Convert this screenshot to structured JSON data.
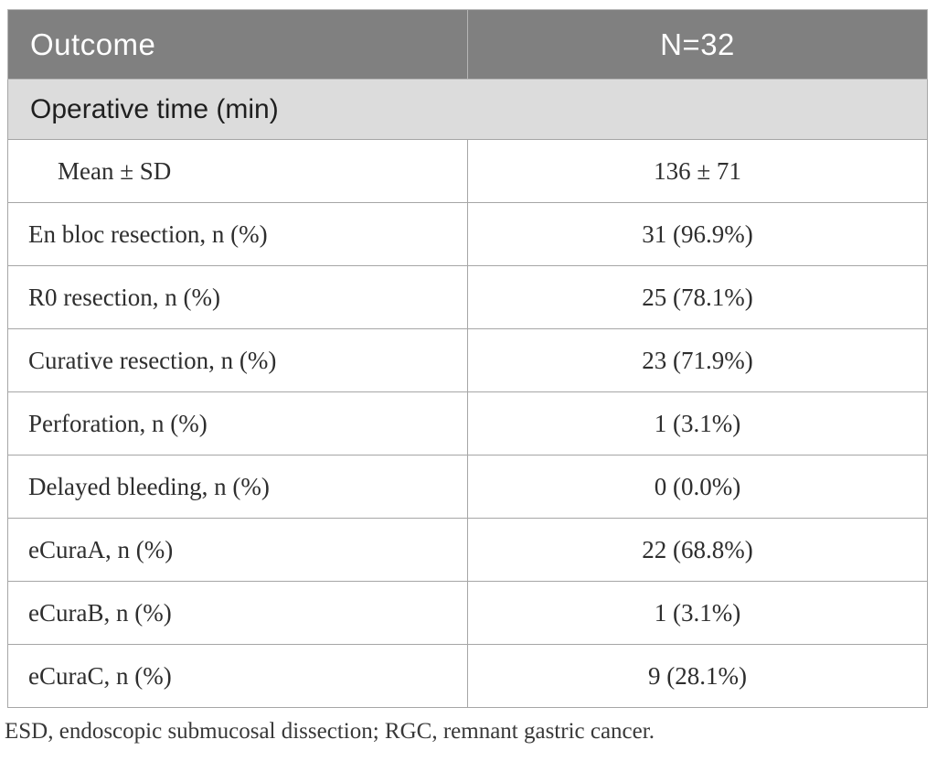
{
  "table": {
    "header": {
      "outcome_label": "Outcome",
      "n_label": "N=32"
    },
    "section": {
      "label": "Operative time (min)"
    },
    "rows": [
      {
        "label": "Mean ± SD",
        "value": "136 ± 71",
        "indent": true
      },
      {
        "label": "En bloc resection, n (%)",
        "value": "31 (96.9%)",
        "indent": false
      },
      {
        "label": "R0 resection, n (%)",
        "value": "25 (78.1%)",
        "indent": false
      },
      {
        "label": "Curative resection, n (%)",
        "value": "23 (71.9%)",
        "indent": false
      },
      {
        "label": "Perforation, n (%)",
        "value": "1 (3.1%)",
        "indent": false
      },
      {
        "label": "Delayed bleeding, n (%)",
        "value": "0 (0.0%)",
        "indent": false
      },
      {
        "label": "eCuraA, n (%)",
        "value": "22 (68.8%)",
        "indent": false
      },
      {
        "label": "eCuraB, n (%)",
        "value": "1 (3.1%)",
        "indent": false
      },
      {
        "label": "eCuraC, n (%)",
        "value": "9 (28.1%)",
        "indent": false
      }
    ],
    "footnote": "ESD, endoscopic submucosal dissection; RGC, remnant gastric cancer.",
    "colors": {
      "header_bg": "#808080",
      "header_text": "#ffffff",
      "section_bg": "#dcdcdc",
      "body_text": "#2e2e2e",
      "border": "#a6a6a6",
      "page_bg": "#ffffff"
    }
  }
}
